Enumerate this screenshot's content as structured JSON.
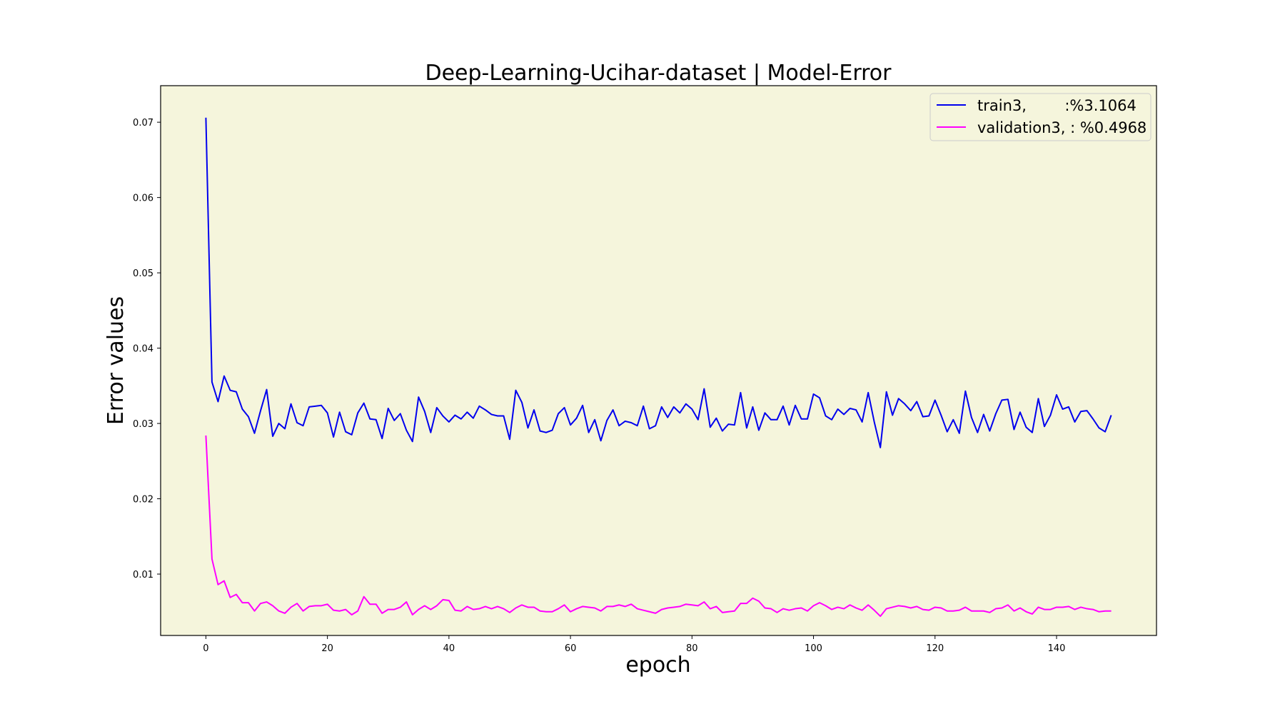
{
  "chart_data": {
    "type": "line",
    "title": "Deep-Learning-Ucihar-dataset  | Model-Error",
    "xlabel": "epoch",
    "ylabel": "Error values",
    "xlim": [
      -7.45,
      156.45
    ],
    "ylim": [
      0.00185,
      0.07485
    ],
    "xticks": [
      0,
      20,
      40,
      60,
      80,
      100,
      120,
      140
    ],
    "yticks": [
      0.01,
      0.02,
      0.03,
      0.04,
      0.05,
      0.06,
      0.07
    ],
    "xtick_labels": [
      "0",
      "20",
      "40",
      "60",
      "80",
      "100",
      "120",
      "140"
    ],
    "ytick_labels": [
      "0.01",
      "0.02",
      "0.03",
      "0.04",
      "0.05",
      "0.06",
      "0.07"
    ],
    "grid": false,
    "legend_position": "top-right",
    "plot_background": "#f5f5dc",
    "series": [
      {
        "name": "train3,        :%3.1064",
        "color": "#0000ee",
        "values": [
          0.0706,
          0.0355,
          0.0329,
          0.0363,
          0.0344,
          0.0342,
          0.0319,
          0.0309,
          0.0287,
          0.0317,
          0.0345,
          0.0283,
          0.03,
          0.0293,
          0.0326,
          0.0301,
          0.0297,
          0.0322,
          0.0323,
          0.0324,
          0.0314,
          0.0282,
          0.0315,
          0.0289,
          0.0285,
          0.0314,
          0.0327,
          0.0306,
          0.0305,
          0.028,
          0.032,
          0.0304,
          0.0313,
          0.0291,
          0.0276,
          0.0335,
          0.0316,
          0.0288,
          0.0321,
          0.031,
          0.0302,
          0.0311,
          0.0306,
          0.0315,
          0.0307,
          0.0323,
          0.0318,
          0.0312,
          0.031,
          0.031,
          0.0279,
          0.0344,
          0.0328,
          0.0294,
          0.0318,
          0.029,
          0.0288,
          0.0291,
          0.0313,
          0.0321,
          0.0298,
          0.0307,
          0.0324,
          0.0288,
          0.0305,
          0.0277,
          0.0304,
          0.0318,
          0.0297,
          0.0303,
          0.0301,
          0.0297,
          0.0323,
          0.0293,
          0.0297,
          0.0322,
          0.0308,
          0.0322,
          0.0314,
          0.0326,
          0.0319,
          0.0305,
          0.0346,
          0.0295,
          0.0307,
          0.029,
          0.0299,
          0.0298,
          0.0341,
          0.0294,
          0.0322,
          0.0291,
          0.0314,
          0.0305,
          0.0305,
          0.0323,
          0.0298,
          0.0324,
          0.0306,
          0.0306,
          0.0339,
          0.0334,
          0.031,
          0.0305,
          0.0319,
          0.0312,
          0.032,
          0.0318,
          0.0302,
          0.0341,
          0.0302,
          0.0268,
          0.0342,
          0.0311,
          0.0333,
          0.0326,
          0.0317,
          0.0329,
          0.0309,
          0.031,
          0.0331,
          0.0311,
          0.0289,
          0.0305,
          0.0287,
          0.0343,
          0.0308,
          0.0288,
          0.0312,
          0.029,
          0.0313,
          0.0331,
          0.0332,
          0.0292,
          0.0315,
          0.0295,
          0.0288,
          0.0333,
          0.0296,
          0.0311,
          0.0338,
          0.0319,
          0.0322,
          0.0302,
          0.0316,
          0.0317,
          0.0306,
          0.0294,
          0.0289,
          0.0311
        ]
      },
      {
        "name": "validation3, : %0.4968",
        "color": "#ff00ff",
        "values": [
          0.0284,
          0.012,
          0.0086,
          0.0091,
          0.0069,
          0.0073,
          0.0062,
          0.0062,
          0.0051,
          0.0061,
          0.0063,
          0.0058,
          0.0051,
          0.0048,
          0.0056,
          0.0061,
          0.0051,
          0.0057,
          0.0058,
          0.0058,
          0.006,
          0.0052,
          0.0051,
          0.0053,
          0.0046,
          0.0051,
          0.007,
          0.006,
          0.006,
          0.0048,
          0.0053,
          0.0053,
          0.0056,
          0.0063,
          0.0046,
          0.0053,
          0.0058,
          0.0053,
          0.0058,
          0.0066,
          0.0065,
          0.0052,
          0.0051,
          0.0057,
          0.0053,
          0.0054,
          0.0057,
          0.0054,
          0.0057,
          0.0054,
          0.0049,
          0.0055,
          0.0059,
          0.0056,
          0.0056,
          0.0051,
          0.005,
          0.005,
          0.0054,
          0.0059,
          0.005,
          0.0054,
          0.0057,
          0.0056,
          0.0055,
          0.0051,
          0.0057,
          0.0057,
          0.0059,
          0.0057,
          0.006,
          0.0054,
          0.0052,
          0.005,
          0.0048,
          0.0053,
          0.0055,
          0.0056,
          0.0057,
          0.006,
          0.0059,
          0.0058,
          0.0063,
          0.0054,
          0.0057,
          0.0049,
          0.005,
          0.0051,
          0.0061,
          0.0061,
          0.0068,
          0.0064,
          0.0055,
          0.0054,
          0.0049,
          0.0054,
          0.0052,
          0.0054,
          0.0055,
          0.0051,
          0.0058,
          0.0062,
          0.0058,
          0.0053,
          0.0056,
          0.0054,
          0.0059,
          0.0055,
          0.0052,
          0.0059,
          0.0052,
          0.0044,
          0.0054,
          0.0056,
          0.0058,
          0.0057,
          0.0055,
          0.0057,
          0.0053,
          0.0052,
          0.0056,
          0.0055,
          0.0051,
          0.0051,
          0.0052,
          0.0056,
          0.0051,
          0.0051,
          0.0051,
          0.0049,
          0.0054,
          0.0055,
          0.0059,
          0.0051,
          0.0055,
          0.005,
          0.0047,
          0.0056,
          0.0053,
          0.0053,
          0.0056,
          0.0056,
          0.0057,
          0.0053,
          0.0056,
          0.0054,
          0.0053,
          0.005,
          0.0051,
          0.0051
        ]
      }
    ]
  }
}
